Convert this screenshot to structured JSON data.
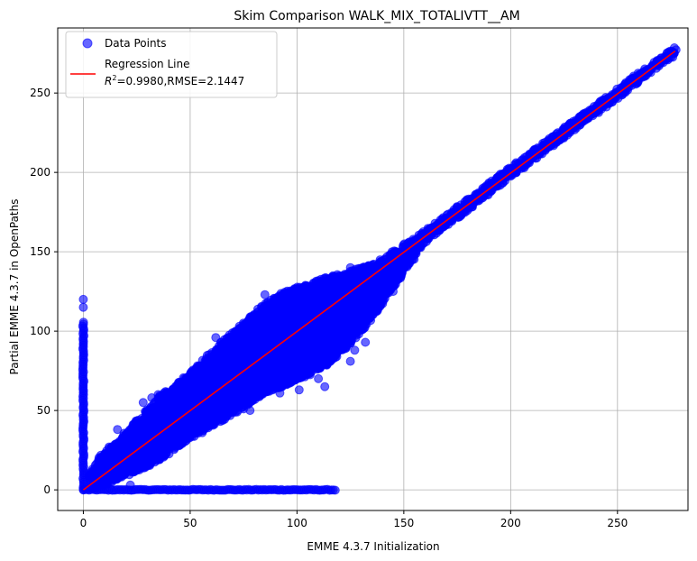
{
  "chart_data": {
    "type": "scatter",
    "title": "Skim Comparison WALK_MIX_TOTALIVTT__AM",
    "xlabel": "EMME 4.3.7 Initialization",
    "ylabel": "Partial EMME 4.3.7 in OpenPaths",
    "xlim": [
      -12,
      283
    ],
    "ylim": [
      -13,
      291
    ],
    "xticks": [
      0,
      50,
      100,
      150,
      200,
      250
    ],
    "yticks": [
      0,
      50,
      100,
      150,
      200,
      250
    ],
    "grid": true,
    "legend": {
      "placement": "top-left",
      "entries": [
        {
          "label": "Data Points",
          "marker": "circle"
        },
        {
          "label": "Regression Line",
          "sublabel": "=0.9980,RMSE=2.1447",
          "r2_symbol": "R",
          "r2_exp": "2",
          "marker": "line"
        }
      ]
    },
    "colors": {
      "points": "#0000ff",
      "regression": "#ff0000",
      "grid": "#b0b0b0"
    },
    "regression": {
      "slope": 0.998,
      "intercept": 0.0,
      "x_range": [
        0,
        277
      ],
      "r2": 0.998,
      "rmse": 2.1447
    },
    "series": [
      {
        "name": "Data Points",
        "diagonal_band": [
          {
            "x": 3,
            "y_min": 0,
            "y_max": 10
          },
          {
            "x": 8,
            "y_min": 2,
            "y_max": 22
          },
          {
            "x": 15,
            "y_min": 6,
            "y_max": 30
          },
          {
            "x": 25,
            "y_min": 12,
            "y_max": 44
          },
          {
            "x": 35,
            "y_min": 18,
            "y_max": 58
          },
          {
            "x": 45,
            "y_min": 28,
            "y_max": 68
          },
          {
            "x": 55,
            "y_min": 36,
            "y_max": 80
          },
          {
            "x": 65,
            "y_min": 44,
            "y_max": 93
          },
          {
            "x": 75,
            "y_min": 52,
            "y_max": 105
          },
          {
            "x": 85,
            "y_min": 60,
            "y_max": 118
          },
          {
            "x": 95,
            "y_min": 66,
            "y_max": 125
          },
          {
            "x": 105,
            "y_min": 72,
            "y_max": 130
          },
          {
            "x": 115,
            "y_min": 80,
            "y_max": 135
          },
          {
            "x": 125,
            "y_min": 92,
            "y_max": 138
          },
          {
            "x": 135,
            "y_min": 108,
            "y_max": 142
          },
          {
            "x": 145,
            "y_min": 128,
            "y_max": 150
          },
          {
            "x": 160,
            "y_min": 156,
            "y_max": 163
          },
          {
            "x": 200,
            "y_min": 197,
            "y_max": 203
          },
          {
            "x": 240,
            "y_min": 237,
            "y_max": 243
          },
          {
            "x": 277,
            "y_min": 274,
            "y_max": 279
          }
        ],
        "vertical_strip": {
          "x": 0,
          "y_min": 0,
          "y_max": 106,
          "outliers_y": [
            115,
            120
          ]
        },
        "horizontal_strip": {
          "y": 0,
          "x_min": 0,
          "x_max": 118
        },
        "sample_points": [
          [
            12,
            27
          ],
          [
            9,
            16
          ],
          [
            16,
            38
          ],
          [
            17,
            22
          ],
          [
            22,
            3
          ],
          [
            38,
            51
          ],
          [
            28,
            55
          ],
          [
            32,
            58
          ],
          [
            35,
            60
          ],
          [
            62,
            96
          ],
          [
            64,
            60
          ],
          [
            75,
            100
          ],
          [
            86,
            101
          ],
          [
            80,
            110
          ],
          [
            85,
            123
          ],
          [
            100,
            125
          ],
          [
            110,
            70
          ],
          [
            113,
            65
          ],
          [
            127,
            88
          ],
          [
            132,
            93
          ],
          [
            125,
            81
          ],
          [
            145,
            125
          ],
          [
            138,
            139
          ],
          [
            125,
            140
          ],
          [
            101,
            63
          ],
          [
            75,
            51
          ],
          [
            78,
            50
          ],
          [
            92,
            61
          ],
          [
            87,
            68
          ]
        ]
      }
    ]
  }
}
